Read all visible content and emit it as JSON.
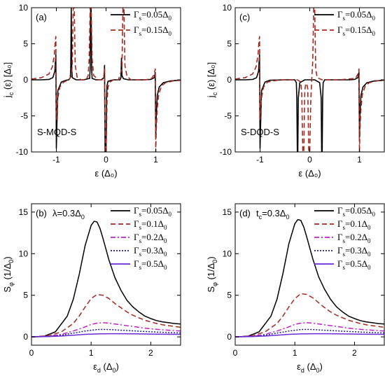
{
  "chart_data": [
    {
      "id": "a",
      "type": "line",
      "panel_label": "(a)",
      "annotation": "S-MQD-S",
      "xlabel": "ε (Δ₀)",
      "ylabel": "j_c (ε) [Δ₀]",
      "xlim": [
        -1.5,
        1.5
      ],
      "ylim": [
        -10,
        10
      ],
      "xticks": [
        -1,
        0,
        1
      ],
      "xtick_labels": [
        "-1",
        "0",
        "1"
      ],
      "yticks": [
        -10,
        -5,
        0,
        5,
        10
      ],
      "ytick_labels": [
        "-10",
        "-5",
        "0",
        "5",
        "10"
      ],
      "legend_position": "top-right",
      "series": [
        {
          "name": "Γs=0.05Δ0",
          "color": "#000000",
          "dash": "solid",
          "x": [
            -1.5,
            -1.3,
            -1.15,
            -1.07,
            -1.03,
            -1.01,
            -1.0,
            -0.99,
            -0.97,
            -0.9,
            -0.8,
            -0.75,
            -0.72,
            -0.71,
            -0.7,
            -0.69,
            -0.68,
            -0.6,
            -0.45,
            -0.33,
            -0.32,
            -0.31,
            -0.3,
            -0.29,
            -0.28,
            -0.2,
            -0.1,
            -0.04,
            -0.03,
            -0.02,
            -0.01,
            0.0,
            0.01,
            0.02,
            0.04,
            0.15,
            0.28,
            0.3,
            0.31,
            0.32,
            0.35,
            0.45,
            0.6,
            0.75,
            0.9,
            0.97,
            0.99,
            1.0,
            1.01,
            1.03,
            1.07,
            1.15,
            1.3,
            1.5
          ],
          "y": [
            0.0,
            0.0,
            0.05,
            0.3,
            1.2,
            3.5,
            -9.5,
            -6.5,
            -1.5,
            -0.3,
            -0.05,
            0.0,
            0.3,
            1.5,
            10,
            1.5,
            0.3,
            0.0,
            0.0,
            0.2,
            1.5,
            10,
            10,
            1.5,
            0.2,
            0.0,
            0.0,
            0.3,
            2.0,
            -10,
            -10,
            -10,
            -2.5,
            -0.8,
            -0.2,
            0.0,
            0.0,
            0.3,
            3.0,
            0.6,
            0.15,
            0.0,
            0.0,
            0.0,
            0.05,
            0.3,
            1.0,
            -8.0,
            -5.0,
            -2.2,
            -1.0,
            -0.4,
            -0.15,
            -0.05
          ]
        },
        {
          "name": "Γs=0.15Δ0",
          "color": "#a52a1e",
          "dash": "dashed",
          "x": [
            -1.5,
            -1.3,
            -1.15,
            -1.08,
            -1.04,
            -1.02,
            -1.01,
            -1.0,
            -0.99,
            -0.97,
            -0.93,
            -0.85,
            -0.75,
            -0.7,
            -0.68,
            -0.66,
            -0.64,
            -0.62,
            -0.58,
            -0.5,
            -0.4,
            -0.36,
            -0.34,
            -0.32,
            -0.3,
            -0.28,
            -0.25,
            -0.15,
            -0.08,
            -0.05,
            -0.03,
            -0.02,
            -0.01,
            0.0,
            0.02,
            0.04,
            0.08,
            0.15,
            0.25,
            0.32,
            0.34,
            0.36,
            0.38,
            0.42,
            0.5,
            0.65,
            0.8,
            0.92,
            0.97,
            0.99,
            1.0,
            1.01,
            1.03,
            1.06,
            1.12,
            1.2,
            1.35,
            1.5
          ],
          "y": [
            0.1,
            0.3,
            0.8,
            1.8,
            3.5,
            5.5,
            6.0,
            -5.5,
            -4.5,
            -2.5,
            -1.0,
            -0.3,
            0.0,
            0.5,
            2.0,
            10,
            10,
            2.0,
            0.3,
            0.0,
            0.0,
            0.6,
            3.0,
            10,
            10,
            3.0,
            0.6,
            0.0,
            0.0,
            0.3,
            1.5,
            -10,
            -10,
            -10,
            -3.0,
            -1.0,
            -0.3,
            0.0,
            0.0,
            1.5,
            10,
            10,
            2.0,
            0.5,
            0.0,
            0.0,
            0.0,
            0.2,
            0.8,
            1.5,
            -10,
            -7.0,
            -4.0,
            -2.0,
            -0.8,
            -0.4,
            -0.15,
            -0.05
          ]
        }
      ]
    },
    {
      "id": "c",
      "type": "line",
      "panel_label": "(c)",
      "annotation": "S-DQD-S",
      "xlabel": "ε (Δ₀)",
      "ylabel": "j_c (ε) [Δ₀]",
      "xlim": [
        -1.5,
        1.5
      ],
      "ylim": [
        -10,
        10
      ],
      "xticks": [
        -1,
        0,
        1
      ],
      "xtick_labels": [
        "-1",
        "0",
        "1"
      ],
      "yticks": [
        -10,
        -5,
        0,
        5,
        10
      ],
      "ytick_labels": [
        "-10",
        "-5",
        "0",
        "5",
        "10"
      ],
      "legend_position": "top-right",
      "series": [
        {
          "name": "Γs=0.05Δ0",
          "color": "#000000",
          "dash": "solid",
          "x": [
            -1.5,
            -1.3,
            -1.15,
            -1.07,
            -1.03,
            -1.01,
            -1.0,
            -0.99,
            -0.97,
            -0.9,
            -0.8,
            -0.5,
            -0.3,
            -0.27,
            -0.26,
            -0.25,
            -0.24,
            -0.23,
            -0.2,
            -0.1,
            0.0,
            0.1,
            0.2,
            0.23,
            0.24,
            0.25,
            0.26,
            0.27,
            0.3,
            0.5,
            0.8,
            0.9,
            0.97,
            0.99,
            1.0,
            1.01,
            1.03,
            1.07,
            1.15,
            1.3,
            1.5
          ],
          "y": [
            0.0,
            0.0,
            0.05,
            0.3,
            1.2,
            3.5,
            -9.5,
            -6.5,
            -1.5,
            -0.3,
            -0.05,
            0.0,
            0.0,
            -0.4,
            -2.5,
            -10,
            -10,
            -2.5,
            -0.4,
            0.0,
            0.0,
            0.0,
            -0.4,
            -2.5,
            -10,
            -10,
            -2.5,
            -0.4,
            0.0,
            0.0,
            0.0,
            0.05,
            0.3,
            1.0,
            -8.0,
            -5.0,
            -2.2,
            -1.0,
            -0.4,
            -0.15,
            -0.05
          ]
        },
        {
          "name": "Γs=0.15Δ0",
          "color": "#a52a1e",
          "dash": "dashed",
          "x": [
            -1.5,
            -1.3,
            -1.15,
            -1.08,
            -1.04,
            -1.02,
            -1.01,
            -1.0,
            -0.99,
            -0.97,
            -0.93,
            -0.85,
            -0.6,
            -0.25,
            -0.18,
            -0.16,
            -0.14,
            -0.12,
            -0.1,
            -0.08,
            -0.06,
            -0.04,
            -0.02,
            0.0,
            0.02,
            0.04,
            0.06,
            0.08,
            0.1,
            0.12,
            0.15,
            0.25,
            0.6,
            0.92,
            0.97,
            0.99,
            1.0,
            1.01,
            1.03,
            1.06,
            1.12,
            1.2,
            1.35,
            1.5
          ],
          "y": [
            0.1,
            0.3,
            0.8,
            1.8,
            3.5,
            5.5,
            6.0,
            -5.5,
            -4.5,
            -2.5,
            -1.0,
            -0.3,
            0.0,
            0.0,
            -0.3,
            -2.0,
            -10,
            -10,
            -1.5,
            -0.5,
            -0.6,
            -1.2,
            -10,
            -10,
            -3.0,
            0.0,
            2.5,
            10,
            10,
            1.5,
            0.3,
            0.0,
            0.0,
            0.2,
            0.8,
            1.5,
            -10,
            -7.0,
            -4.0,
            -2.0,
            -0.8,
            -0.4,
            -0.15,
            -0.05
          ]
        }
      ]
    },
    {
      "id": "b",
      "type": "line",
      "panel_label": "(b)",
      "annotation": "λ=0.3Δ0",
      "xlabel": "εd (Δ0)",
      "ylabel": "Sφ (1/Δ0)",
      "xlim": [
        0,
        2.5
      ],
      "ylim": [
        -1,
        16
      ],
      "xticks": [
        0,
        1,
        2
      ],
      "xtick_labels": [
        "0",
        "1",
        "2"
      ],
      "yticks": [
        0,
        5,
        10,
        15
      ],
      "ytick_labels": [
        "0",
        "5",
        "10",
        "15"
      ],
      "legend_position": "top-right",
      "series": [
        {
          "name": "Γs=0.05Δ0",
          "color": "#000000",
          "dash": "solid",
          "x": [
            0,
            0.2,
            0.4,
            0.6,
            0.7,
            0.8,
            0.9,
            1.0,
            1.05,
            1.1,
            1.15,
            1.2,
            1.3,
            1.4,
            1.5,
            1.6,
            1.7,
            1.8,
            1.9,
            2.0,
            2.1,
            2.2,
            2.3,
            2.4,
            2.5
          ],
          "y": [
            0.0,
            0.05,
            0.6,
            2.5,
            4.5,
            7.5,
            11.0,
            13.4,
            13.9,
            13.8,
            13.0,
            11.8,
            9.2,
            7.1,
            5.6,
            4.4,
            3.6,
            3.0,
            2.5,
            2.2,
            1.95,
            1.8,
            1.7,
            1.6,
            1.55
          ]
        },
        {
          "name": "Γs=0.1Δ0",
          "color": "#a52a1e",
          "dash": "dashed",
          "x": [
            0,
            0.3,
            0.5,
            0.7,
            0.8,
            0.9,
            1.0,
            1.1,
            1.2,
            1.3,
            1.4,
            1.5,
            1.6,
            1.7,
            1.8,
            1.9,
            2.0,
            2.1,
            2.2,
            2.3,
            2.4,
            2.5
          ],
          "y": [
            0.0,
            0.15,
            0.6,
            1.6,
            2.5,
            3.6,
            4.6,
            5.1,
            5.0,
            4.6,
            4.0,
            3.5,
            3.0,
            2.6,
            2.3,
            2.0,
            1.8,
            1.6,
            1.45,
            1.35,
            1.25,
            1.15
          ]
        },
        {
          "name": "Γs=0.2Δ0",
          "color": "#c020c8",
          "dash": "dashdot",
          "x": [
            0,
            0.3,
            0.5,
            0.7,
            0.9,
            1.0,
            1.1,
            1.2,
            1.3,
            1.4,
            1.5,
            1.7,
            1.9,
            2.1,
            2.3,
            2.5
          ],
          "y": [
            0.0,
            0.1,
            0.3,
            0.7,
            1.2,
            1.5,
            1.65,
            1.7,
            1.65,
            1.55,
            1.45,
            1.25,
            1.05,
            0.9,
            0.8,
            0.7
          ]
        },
        {
          "name": "Γs=0.3Δ0",
          "color": "#1a1a8c",
          "dash": "dotted",
          "x": [
            0,
            0.3,
            0.5,
            0.7,
            0.9,
            1.1,
            1.2,
            1.3,
            1.5,
            1.7,
            1.9,
            2.1,
            2.3,
            2.5
          ],
          "y": [
            0.0,
            0.05,
            0.2,
            0.45,
            0.7,
            0.88,
            0.9,
            0.88,
            0.8,
            0.72,
            0.65,
            0.58,
            0.52,
            0.47
          ]
        },
        {
          "name": "Γs=0.5Δ0",
          "color": "#6a2bd8",
          "dash": "solid",
          "x": [
            0,
            0.3,
            0.5,
            0.7,
            0.9,
            1.1,
            1.3,
            1.5,
            1.7,
            1.9,
            2.1,
            2.3,
            2.5
          ],
          "y": [
            0.0,
            0.04,
            0.1,
            0.2,
            0.3,
            0.36,
            0.38,
            0.38,
            0.37,
            0.35,
            0.33,
            0.31,
            0.3
          ]
        }
      ]
    },
    {
      "id": "d",
      "type": "line",
      "panel_label": "(d)",
      "annotation": "tc=0.3Δ0",
      "xlabel": "εd (Δ0)",
      "ylabel": "Sφ (1/Δ0)",
      "xlim": [
        0,
        2.5
      ],
      "ylim": [
        -1,
        16
      ],
      "xticks": [
        0,
        1,
        2
      ],
      "xtick_labels": [
        "0",
        "1",
        "2"
      ],
      "yticks": [
        0,
        5,
        10,
        15
      ],
      "ytick_labels": [
        "0",
        "5",
        "10",
        "15"
      ],
      "legend_position": "top-right",
      "series": [
        {
          "name": "Γs=0.05Δ0",
          "color": "#000000",
          "dash": "solid",
          "x": [
            0,
            0.2,
            0.4,
            0.6,
            0.7,
            0.8,
            0.9,
            1.0,
            1.05,
            1.1,
            1.15,
            1.2,
            1.3,
            1.4,
            1.5,
            1.6,
            1.7,
            1.8,
            1.9,
            2.0,
            2.1,
            2.2,
            2.3,
            2.4,
            2.5
          ],
          "y": [
            0.0,
            0.05,
            0.6,
            2.5,
            4.5,
            7.6,
            11.2,
            13.6,
            14.1,
            14.0,
            13.2,
            12.0,
            9.4,
            7.2,
            5.7,
            4.5,
            3.6,
            3.0,
            2.5,
            2.2,
            1.95,
            1.8,
            1.7,
            1.6,
            1.55
          ]
        },
        {
          "name": "Γs=0.1Δ0",
          "color": "#a52a1e",
          "dash": "dashed",
          "x": [
            0,
            0.3,
            0.5,
            0.7,
            0.8,
            0.9,
            1.0,
            1.1,
            1.2,
            1.3,
            1.4,
            1.5,
            1.6,
            1.7,
            1.8,
            1.9,
            2.0,
            2.1,
            2.2,
            2.3,
            2.4,
            2.5
          ],
          "y": [
            0.0,
            0.15,
            0.6,
            1.6,
            2.5,
            3.6,
            4.6,
            5.2,
            5.1,
            4.7,
            4.1,
            3.5,
            3.0,
            2.6,
            2.3,
            2.0,
            1.8,
            1.6,
            1.45,
            1.35,
            1.25,
            1.15
          ]
        },
        {
          "name": "Γs=0.2Δ0",
          "color": "#c020c8",
          "dash": "dashdot",
          "x": [
            0,
            0.3,
            0.5,
            0.7,
            0.9,
            1.0,
            1.1,
            1.2,
            1.3,
            1.4,
            1.5,
            1.7,
            1.9,
            2.1,
            2.3,
            2.5
          ],
          "y": [
            0.0,
            0.1,
            0.3,
            0.7,
            1.2,
            1.5,
            1.65,
            1.7,
            1.65,
            1.55,
            1.45,
            1.25,
            1.05,
            0.9,
            0.8,
            0.7
          ]
        },
        {
          "name": "Γs=0.3Δ0",
          "color": "#1a1a8c",
          "dash": "dotted",
          "x": [
            0,
            0.3,
            0.5,
            0.7,
            0.9,
            1.1,
            1.2,
            1.3,
            1.5,
            1.7,
            1.9,
            2.1,
            2.3,
            2.5
          ],
          "y": [
            0.0,
            0.05,
            0.2,
            0.45,
            0.7,
            0.88,
            0.9,
            0.88,
            0.8,
            0.72,
            0.65,
            0.58,
            0.52,
            0.47
          ]
        },
        {
          "name": "Γs=0.5Δ0",
          "color": "#6a2bd8",
          "dash": "solid",
          "x": [
            0,
            0.3,
            0.5,
            0.7,
            0.9,
            1.1,
            1.3,
            1.5,
            1.7,
            1.9,
            2.1,
            2.3,
            2.5
          ],
          "y": [
            0.0,
            0.04,
            0.1,
            0.2,
            0.3,
            0.36,
            0.38,
            0.38,
            0.37,
            0.35,
            0.33,
            0.31,
            0.3
          ]
        }
      ]
    }
  ]
}
